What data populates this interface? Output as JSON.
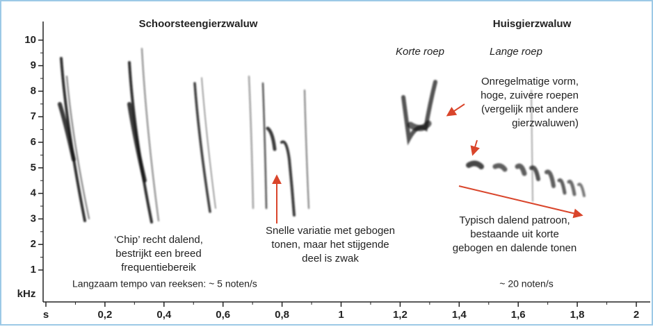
{
  "chart_data": {
    "type": "spectrogram",
    "y_axis_label": "kHz",
    "xlim": [
      0,
      2.05
    ],
    "ylim": [
      -0.25,
      11
    ],
    "xticks": [
      {
        "value": 0,
        "label": "s"
      },
      {
        "value": 0.2,
        "label": "0,2"
      },
      {
        "value": 0.4,
        "label": "0,4"
      },
      {
        "value": 0.6,
        "label": "0,6"
      },
      {
        "value": 0.8,
        "label": "0,8"
      },
      1,
      {
        "value": 1.2,
        "label": "1,2"
      },
      {
        "value": 1.4,
        "label": "1,4"
      },
      {
        "value": 1.6,
        "label": "1,6"
      },
      {
        "value": 1.8,
        "label": "1,8"
      },
      2
    ],
    "yticks": [
      1,
      2,
      3,
      4,
      5,
      6,
      7,
      8,
      9,
      10
    ],
    "titles": [
      "Schoorsteengierzwaluw",
      "Huisgierzwaluw"
    ],
    "subtitles": [
      "Korte roep",
      "Lange roep"
    ],
    "annotations": [
      {
        "lines": [
          "‘Chip’ recht dalend,",
          "bestrijkt een breed",
          "frequentiebereik"
        ]
      },
      {
        "lines": [
          "Snelle variatie met gebogen",
          "tonen, maar het stijgende",
          "deel is zwak"
        ]
      },
      {
        "lines": [
          "Onregelmatige vorm,",
          "hoge, zuivere roepen",
          "(vergelijk met andere",
          "gierzwaluwen)"
        ]
      },
      {
        "lines": [
          "Typisch dalend patroon,",
          "bestaande uit korte",
          "gebogen en dalende tonen"
        ]
      },
      {
        "lines": [
          "Langzaam tempo van reeksen: ~ 5 noten/s"
        ]
      },
      {
        "lines": [
          "~ 20 noten/s"
        ]
      }
    ]
  }
}
